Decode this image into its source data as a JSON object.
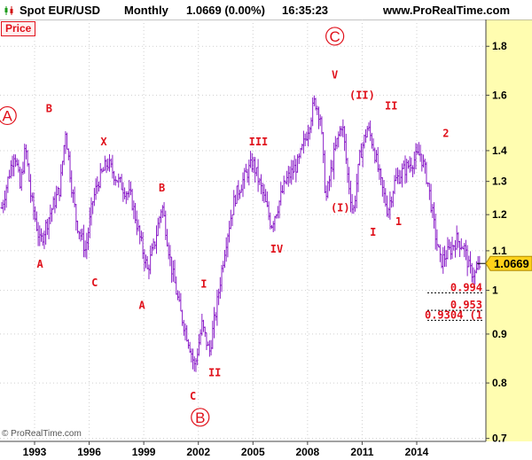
{
  "header": {
    "instrument": "Spot EUR/USD",
    "period": "Monthly",
    "quote": "1.0669 (0.00%)",
    "time": "16:35:23",
    "site": "www.ProRealTime.com"
  },
  "panel": {
    "label": "Price"
  },
  "footer": {
    "copyright": "© ProRealTime.com"
  },
  "colors": {
    "candle": "#8a1ec8",
    "label": "#e0101a",
    "price_box": "#ffd21a",
    "axis_bg": "#fffdb0",
    "grid": "#cfcfcf"
  },
  "chart_data": {
    "type": "ohlc",
    "title": "",
    "xlabel": "",
    "ylabel": "",
    "scale": "log",
    "xlim": [
      1991.1,
      2017.8
    ],
    "ylim": [
      0.695,
      1.92
    ],
    "xticks": [
      {
        "value": 1993,
        "label": "1993"
      },
      {
        "value": 1996,
        "label": "1996"
      },
      {
        "value": 1999,
        "label": "1999"
      },
      {
        "value": 2002,
        "label": "2002"
      },
      {
        "value": 2005,
        "label": "2005"
      },
      {
        "value": 2008,
        "label": "2008"
      },
      {
        "value": 2011,
        "label": "2011"
      },
      {
        "value": 2014,
        "label": "2014"
      }
    ],
    "yticks": [
      0.7,
      0.8,
      0.9,
      1.0,
      1.1,
      1.2,
      1.3,
      1.4,
      1.6,
      1.8
    ],
    "ytick_labels": [
      "0.7",
      "0.8",
      "0.9",
      "1",
      "1.1",
      "1.2",
      "1.3",
      "1.4",
      "1.6",
      "1.8"
    ],
    "last_price": {
      "value": 1.0669,
      "label": "1.0669"
    },
    "targets": [
      {
        "value": 0.994,
        "label": "0.994"
      },
      {
        "value": 0.953,
        "label": "0.953"
      },
      {
        "value": 0.9304,
        "label": "0.9304 (1"
      }
    ],
    "waypoints": [
      [
        1991.2,
        1.22
      ],
      [
        1991.9,
        1.4
      ],
      [
        1992.2,
        1.28
      ],
      [
        1992.5,
        1.41
      ],
      [
        1992.8,
        1.25
      ],
      [
        1993.3,
        1.12
      ],
      [
        1993.9,
        1.21
      ],
      [
        1994.4,
        1.28
      ],
      [
        1994.7,
        1.47
      ],
      [
        1995.0,
        1.3
      ],
      [
        1995.3,
        1.18
      ],
      [
        1995.8,
        1.1
      ],
      [
        1996.2,
        1.24
      ],
      [
        1996.5,
        1.3
      ],
      [
        1997.0,
        1.36
      ],
      [
        1997.6,
        1.3
      ],
      [
        1998.3,
        1.25
      ],
      [
        1998.8,
        1.13
      ],
      [
        1999.2,
        1.05
      ],
      [
        1999.6,
        1.12
      ],
      [
        2000.0,
        1.23
      ],
      [
        2000.5,
        1.06
      ],
      [
        2001.0,
        0.95
      ],
      [
        2001.5,
        0.88
      ],
      [
        2001.8,
        0.83
      ],
      [
        2002.2,
        0.92
      ],
      [
        2002.6,
        0.86
      ],
      [
        2003.0,
        0.96
      ],
      [
        2003.5,
        1.12
      ],
      [
        2004.0,
        1.25
      ],
      [
        2004.6,
        1.32
      ],
      [
        2005.0,
        1.36
      ],
      [
        2005.6,
        1.25
      ],
      [
        2006.0,
        1.17
      ],
      [
        2006.4,
        1.23
      ],
      [
        2006.8,
        1.3
      ],
      [
        2007.5,
        1.36
      ],
      [
        2008.0,
        1.47
      ],
      [
        2008.4,
        1.58
      ],
      [
        2008.7,
        1.52
      ],
      [
        2009.0,
        1.24
      ],
      [
        2009.5,
        1.4
      ],
      [
        2009.9,
        1.5
      ],
      [
        2010.2,
        1.32
      ],
      [
        2010.5,
        1.2
      ],
      [
        2010.9,
        1.39
      ],
      [
        2011.3,
        1.48
      ],
      [
        2011.6,
        1.42
      ],
      [
        2012.0,
        1.3
      ],
      [
        2012.4,
        1.21
      ],
      [
        2012.8,
        1.3
      ],
      [
        2013.2,
        1.33
      ],
      [
        2013.7,
        1.36
      ],
      [
        2014.2,
        1.39
      ],
      [
        2014.6,
        1.3
      ],
      [
        2015.0,
        1.15
      ],
      [
        2015.3,
        1.07
      ],
      [
        2015.8,
        1.1
      ],
      [
        2016.2,
        1.13
      ],
      [
        2016.6,
        1.11
      ],
      [
        2016.9,
        1.05
      ],
      [
        2017.2,
        1.04
      ],
      [
        2017.5,
        1.0669
      ]
    ],
    "wave_labels": [
      {
        "text": "A",
        "x": 1991.5,
        "y": 1.52,
        "circled": true
      },
      {
        "text": "B",
        "x": 1993.8,
        "y": 1.55,
        "circled": false
      },
      {
        "text": "X",
        "x": 1996.8,
        "y": 1.43,
        "circled": false
      },
      {
        "text": "A",
        "x": 1993.3,
        "y": 1.065,
        "circled": false
      },
      {
        "text": "C",
        "x": 1996.3,
        "y": 1.018,
        "circled": false
      },
      {
        "text": "B",
        "x": 2000.0,
        "y": 1.28,
        "circled": false
      },
      {
        "text": "A",
        "x": 1998.9,
        "y": 0.965,
        "circled": false
      },
      {
        "text": "I",
        "x": 2002.3,
        "y": 1.015,
        "circled": false
      },
      {
        "text": "C",
        "x": 2001.7,
        "y": 0.775,
        "circled": false
      },
      {
        "text": "II",
        "x": 2002.9,
        "y": 0.82,
        "circled": false
      },
      {
        "text": "B",
        "x": 2002.1,
        "y": 0.735,
        "circled": true
      },
      {
        "text": "III",
        "x": 2005.3,
        "y": 1.43,
        "circled": false
      },
      {
        "text": "IV",
        "x": 2006.3,
        "y": 1.105,
        "circled": false
      },
      {
        "text": "C",
        "x": 2009.5,
        "y": 1.84,
        "circled": true
      },
      {
        "text": "V",
        "x": 2009.5,
        "y": 1.68,
        "circled": false
      },
      {
        "text": "(II)",
        "x": 2011.0,
        "y": 1.6,
        "circled": false
      },
      {
        "text": "II",
        "x": 2012.6,
        "y": 1.56,
        "circled": false
      },
      {
        "text": "(I)",
        "x": 2009.8,
        "y": 1.22,
        "circled": false
      },
      {
        "text": "I",
        "x": 2011.6,
        "y": 1.15,
        "circled": false
      },
      {
        "text": "1",
        "x": 2013.0,
        "y": 1.18,
        "circled": false
      },
      {
        "text": "2",
        "x": 2015.6,
        "y": 1.46,
        "circled": false
      }
    ]
  }
}
